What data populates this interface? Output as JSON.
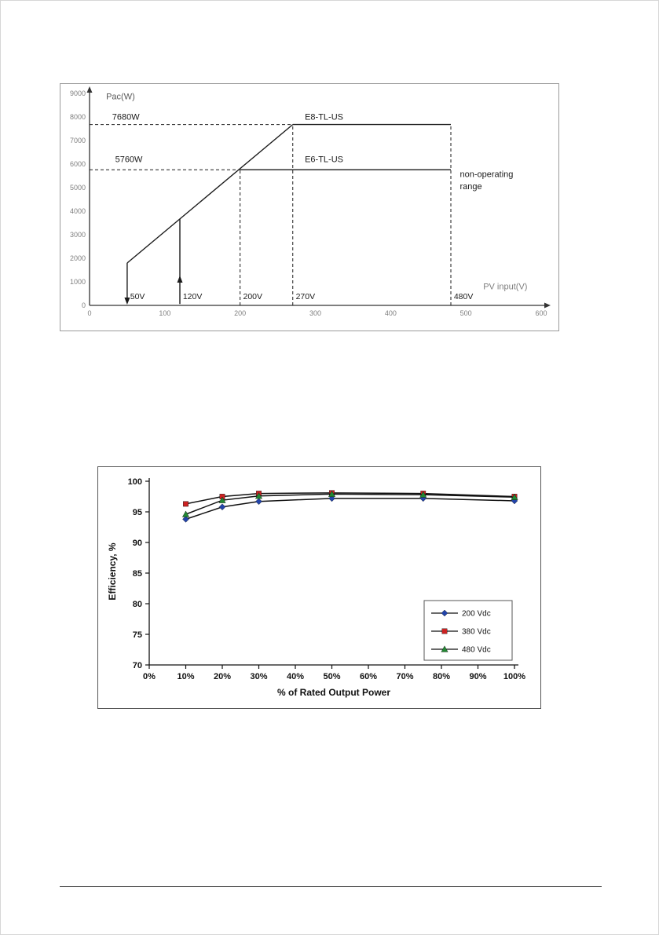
{
  "page": {
    "background": "#ffffff"
  },
  "chart_data": [
    {
      "type": "line",
      "name": "power-derating-chart",
      "title": "",
      "xlabel": "PV input(V)",
      "ylabel": "Pac(W)",
      "xlim": [
        0,
        600
      ],
      "ylim": [
        0,
        9000
      ],
      "xticks": [
        0,
        100,
        200,
        300,
        400,
        500,
        600
      ],
      "yticks": [
        0,
        1000,
        2000,
        3000,
        4000,
        5000,
        6000,
        7000,
        8000,
        9000
      ],
      "grid": false,
      "axis_color": "#333333",
      "tick_color": "#7f7f7f",
      "line_color": "#1a1a1a",
      "segments": [
        {
          "name": "rising-line",
          "points": [
            [
              50,
              1800
            ],
            [
              270,
              7680
            ]
          ]
        },
        {
          "name": "e8-flat-line",
          "points": [
            [
              270,
              7680
            ],
            [
              480,
              7680
            ]
          ]
        },
        {
          "name": "e6-flat-line",
          "points": [
            [
              200,
              5760
            ],
            [
              480,
              5760
            ]
          ]
        }
      ],
      "dashed_lines": [
        {
          "name": "dash-7680w",
          "x1": 0,
          "y1": 7680,
          "x2": 270,
          "y2": 7680
        },
        {
          "name": "dash-5760w",
          "x1": 0,
          "y1": 5760,
          "x2": 200,
          "y2": 5760
        },
        {
          "name": "dash-200v",
          "x1": 200,
          "y1": 0,
          "x2": 200,
          "y2": 5760
        },
        {
          "name": "dash-270v",
          "x1": 270,
          "y1": 0,
          "x2": 270,
          "y2": 7680
        },
        {
          "name": "dash-480v",
          "x1": 480,
          "y1": 0,
          "x2": 480,
          "y2": 7680
        }
      ],
      "arrows": [
        {
          "name": "arrow-50v",
          "x": 50,
          "y_from": 1800,
          "y_to": 200,
          "dir": "down"
        },
        {
          "name": "arrow-120v",
          "x": 120,
          "y_from": 60,
          "y_to": 3670,
          "dir": "up",
          "head_y": 1100
        }
      ],
      "annotations": [
        {
          "text": "Pac(W)",
          "x": 22,
          "y": 8750,
          "color": "#595959",
          "size": 11
        },
        {
          "text": "PV input(V)",
          "x": 523,
          "y": 680,
          "color": "#7f7f7f",
          "size": 11
        },
        {
          "text": "7680W",
          "x": 30,
          "y": 7880,
          "color": "#1a1a1a",
          "size": 11
        },
        {
          "text": "5760W",
          "x": 34,
          "y": 6080,
          "color": "#1a1a1a",
          "size": 11
        },
        {
          "text": "E8-TL-US",
          "x": 286,
          "y": 7880,
          "color": "#1a1a1a",
          "size": 11
        },
        {
          "text": "E6-TL-US",
          "x": 286,
          "y": 6080,
          "color": "#1a1a1a",
          "size": 11
        },
        {
          "text": "non-operating",
          "x": 492,
          "y": 5450,
          "color": "#1a1a1a",
          "size": 11
        },
        {
          "text": "range",
          "x": 492,
          "y": 4930,
          "color": "#1a1a1a",
          "size": 11
        },
        {
          "text": "50V",
          "x": 54,
          "y": 260,
          "color": "#1a1a1a",
          "size": 10.5
        },
        {
          "text": "120V",
          "x": 124,
          "y": 260,
          "color": "#1a1a1a",
          "size": 10.5
        },
        {
          "text": "200V",
          "x": 204,
          "y": 260,
          "color": "#1a1a1a",
          "size": 10.5
        },
        {
          "text": "270V",
          "x": 274,
          "y": 260,
          "color": "#1a1a1a",
          "size": 10.5
        },
        {
          "text": "480V",
          "x": 484,
          "y": 260,
          "color": "#1a1a1a",
          "size": 10.5
        }
      ]
    },
    {
      "type": "line",
      "name": "efficiency-chart",
      "title": "",
      "xlabel": "% of Rated Output Power",
      "ylabel": "Efficiency, %",
      "xlim": [
        0,
        100
      ],
      "ylim": [
        70,
        100
      ],
      "xticks": [
        0,
        10,
        20,
        30,
        40,
        50,
        60,
        70,
        80,
        90,
        100
      ],
      "xtick_labels": [
        "0%",
        "10%",
        "20%",
        "30%",
        "40%",
        "50%",
        "60%",
        "70%",
        "80%",
        "90%",
        "100%"
      ],
      "yticks": [
        70,
        75,
        80,
        85,
        90,
        95,
        100
      ],
      "grid": false,
      "axis_color": "#111111",
      "tick_color": "#111111",
      "line_color": "#111111",
      "x": [
        10,
        20,
        30,
        50,
        75,
        100
      ],
      "series": [
        {
          "name": "200 Vdc",
          "marker": "diamond",
          "color": "#2244aa",
          "values": [
            93.8,
            95.8,
            96.7,
            97.2,
            97.2,
            96.8
          ]
        },
        {
          "name": "380 Vdc",
          "marker": "square",
          "color": "#cc2222",
          "values": [
            96.3,
            97.5,
            98.0,
            98.1,
            98.0,
            97.5
          ]
        },
        {
          "name": "480 Vdc",
          "marker": "triangle",
          "color": "#228833",
          "values": [
            94.6,
            96.9,
            97.6,
            97.9,
            97.8,
            97.4
          ]
        }
      ],
      "legend": {
        "position": "bottom-right",
        "entries": [
          "200 Vdc",
          "380 Vdc",
          "480 Vdc"
        ]
      }
    }
  ]
}
